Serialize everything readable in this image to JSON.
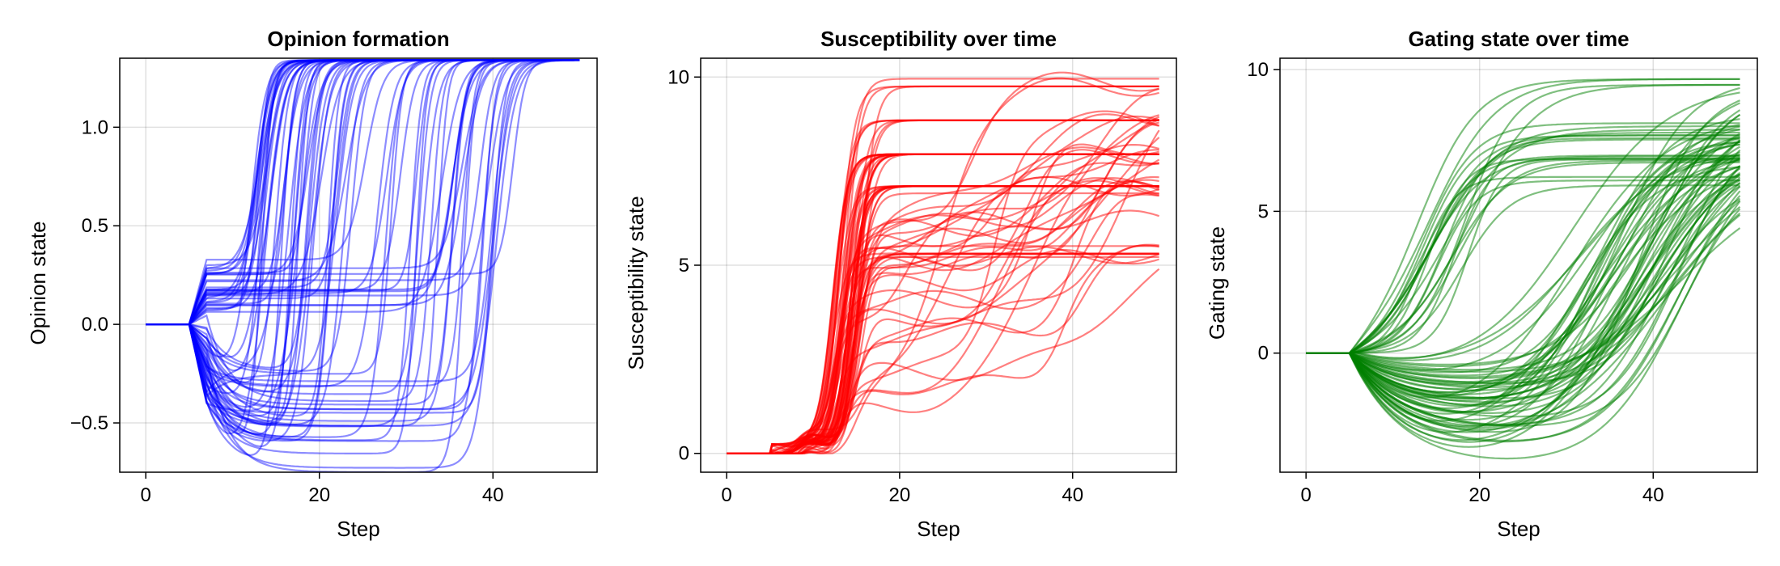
{
  "chart_data": [
    {
      "type": "line",
      "title": "Opinion formation",
      "xlabel": "Step",
      "ylabel": "Opinion state",
      "xlim": [
        -3,
        52
      ],
      "ylim": [
        -0.75,
        1.35
      ],
      "xticks": [
        0,
        20,
        40
      ],
      "yticks": [
        -0.5,
        0.0,
        0.5,
        1.0
      ],
      "ytick_labels": [
        "−0.5",
        "0.0",
        "0.5",
        "1.0"
      ],
      "grid": true,
      "legend": "none",
      "color": "#0000ff",
      "line_opacity": 0.45,
      "series_count": 80,
      "steps": [
        0,
        5,
        7,
        10,
        15,
        20,
        30,
        40,
        50
      ],
      "representative_series": [
        {
          "x": [
            0,
            5,
            7,
            10,
            12,
            14,
            16,
            20,
            50
          ],
          "y": [
            0,
            0,
            0.3,
            0.9,
            1.2,
            1.32,
            1.34,
            1.34,
            1.34
          ]
        },
        {
          "x": [
            0,
            5,
            7,
            10,
            20,
            25,
            28,
            32,
            50
          ],
          "y": [
            0,
            0,
            -0.4,
            -0.5,
            -0.5,
            0.0,
            1.0,
            1.34,
            1.34
          ]
        },
        {
          "x": [
            0,
            5,
            7,
            10,
            20,
            30,
            36,
            40,
            50
          ],
          "y": [
            0,
            0,
            -0.4,
            -0.55,
            -0.65,
            -0.7,
            0.0,
            1.3,
            1.34
          ]
        },
        {
          "x": [
            0,
            5,
            7,
            12,
            20,
            30,
            34,
            40,
            50
          ],
          "y": [
            0,
            0,
            0.0,
            -0.22,
            -0.22,
            -0.22,
            0.5,
            1.34,
            1.34
          ]
        }
      ]
    },
    {
      "type": "line",
      "title": "Susceptibility over time",
      "xlabel": "Step",
      "ylabel": "Susceptibility state",
      "xlim": [
        -3,
        52
      ],
      "ylim": [
        -0.5,
        10.5
      ],
      "xticks": [
        0,
        20,
        40
      ],
      "yticks": [
        0,
        5,
        10
      ],
      "ytick_labels": [
        "0",
        "5",
        "10"
      ],
      "grid": true,
      "legend": "none",
      "color": "#ff0000",
      "line_opacity": 0.5,
      "series_count": 80,
      "plateau_levels": [
        9.75,
        8.85,
        7.95,
        7.1,
        6.2,
        5.3
      ],
      "representative_series": [
        {
          "x": [
            0,
            5,
            10,
            13,
            16,
            20,
            50
          ],
          "y": [
            0,
            0,
            0.3,
            4.0,
            8.5,
            9.75,
            9.75
          ]
        },
        {
          "x": [
            0,
            5,
            10,
            13,
            16,
            20,
            50
          ],
          "y": [
            0,
            0,
            0.3,
            4.0,
            7.5,
            7.95,
            7.95
          ]
        },
        {
          "x": [
            0,
            5,
            10,
            14,
            18,
            30,
            38,
            42,
            50
          ],
          "y": [
            0,
            0,
            0.2,
            1.5,
            2.0,
            2.5,
            3.0,
            6.0,
            7.1
          ]
        },
        {
          "x": [
            0,
            5,
            10,
            14,
            18,
            30,
            40,
            46,
            50
          ],
          "y": [
            0,
            0,
            0.2,
            1.0,
            1.3,
            1.4,
            2.5,
            4.8,
            5.3
          ]
        }
      ]
    },
    {
      "type": "line",
      "title": "Gating state over time",
      "xlabel": "Step",
      "ylabel": "Gating state",
      "xlim": [
        -3,
        52
      ],
      "ylim": [
        -4.2,
        10.4
      ],
      "xticks": [
        0,
        20,
        40
      ],
      "yticks": [
        0,
        5,
        10
      ],
      "ytick_labels": [
        "0",
        "5",
        "10"
      ],
      "grid": true,
      "legend": "none",
      "color": "#008000",
      "line_opacity": 0.5,
      "series_count": 80,
      "plateau_levels": [
        9.5,
        8.6,
        7.7,
        6.9
      ],
      "representative_series": [
        {
          "x": [
            0,
            5,
            10,
            15,
            20,
            30,
            50
          ],
          "y": [
            0,
            0,
            1.5,
            6.0,
            8.0,
            9.2,
            9.5
          ]
        },
        {
          "x": [
            0,
            5,
            10,
            15,
            20,
            30,
            50
          ],
          "y": [
            0,
            0,
            1.0,
            4.5,
            6.5,
            7.5,
            7.7
          ]
        },
        {
          "x": [
            0,
            5,
            10,
            15,
            22,
            32,
            42,
            50
          ],
          "y": [
            0,
            0,
            -0.5,
            -2.0,
            -3.5,
            -3.0,
            2.0,
            6.5
          ]
        },
        {
          "x": [
            0,
            5,
            10,
            16,
            24,
            34,
            44,
            50
          ],
          "y": [
            0,
            0,
            -1.0,
            -3.0,
            -4.0,
            -3.5,
            0.5,
            4.6
          ]
        }
      ]
    }
  ]
}
